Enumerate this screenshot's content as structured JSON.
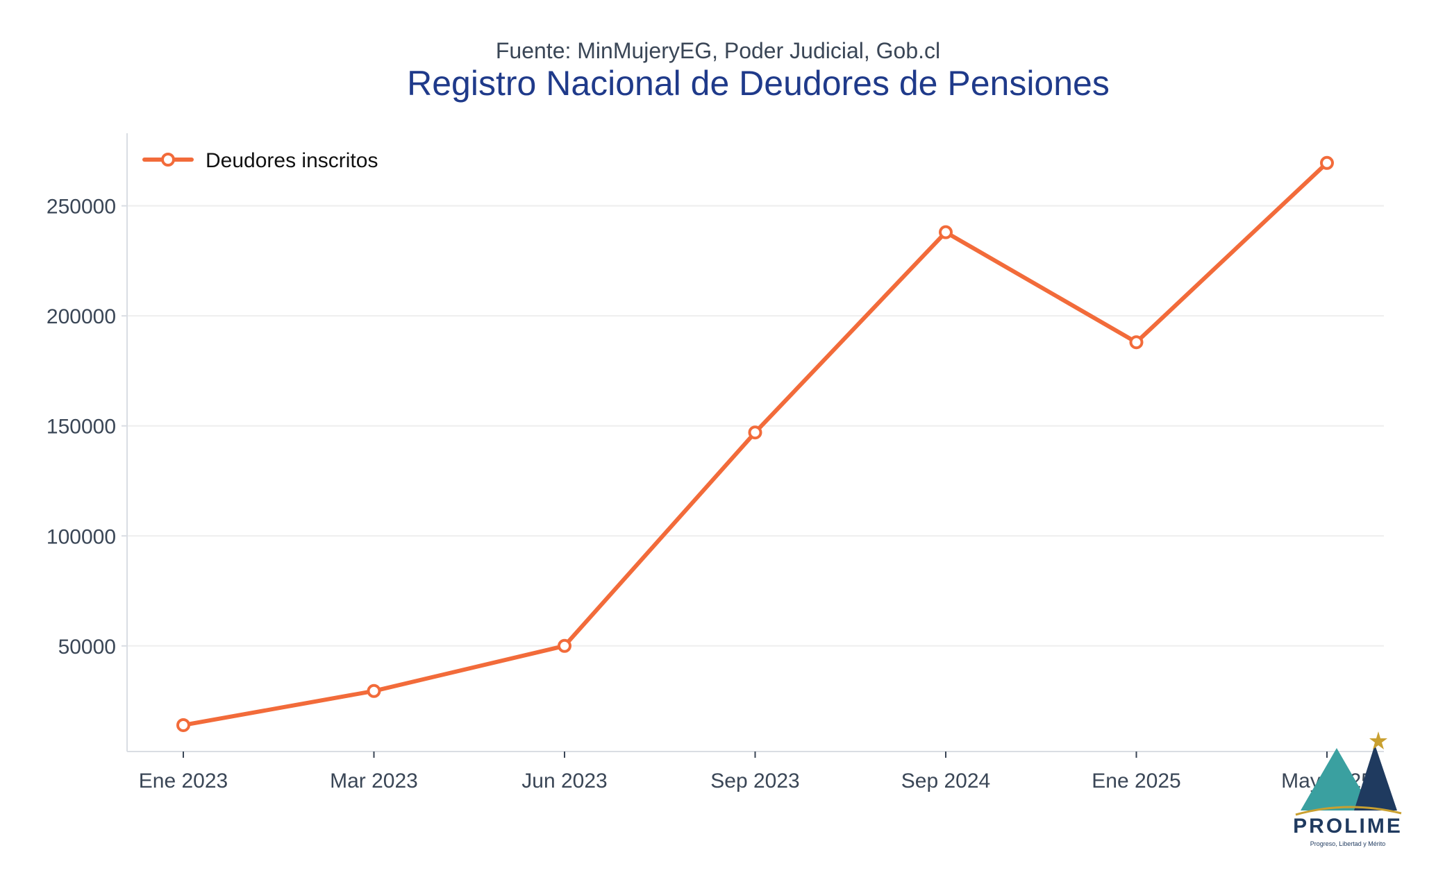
{
  "chart_data": {
    "type": "line",
    "subtitle": "Fuente: MinMujeryEG, Poder Judicial, Gob.cl",
    "title": "Registro Nacional de Deudores de Pensiones",
    "xlabel": "",
    "ylabel": "",
    "categories": [
      "Ene 2023",
      "Mar 2023",
      "Jun 2023",
      "Sep 2023",
      "Sep 2024",
      "Ene 2025",
      "May 2025"
    ],
    "series": [
      {
        "name": "Deudores inscritos",
        "values": [
          14000,
          29500,
          50000,
          147000,
          238000,
          188000,
          269500
        ]
      }
    ],
    "ylim": [
      2000,
      283000
    ],
    "yticks": [
      50000,
      100000,
      150000,
      200000,
      250000
    ],
    "grid": true,
    "legend_position": "top-left",
    "colors": {
      "line": "#f26b3a",
      "marker_fill": "#ffffff",
      "title": "#1f3a8a",
      "text": "#3a4656",
      "grid": "#eeeeee",
      "axis": "#d9dde3"
    }
  },
  "logo": {
    "name": "PROLIME",
    "tagline": "Progreso, Libertad y Mérito",
    "colors": {
      "teal": "#3aa0a0",
      "navy": "#1f3a5f",
      "gold": "#c9a030"
    }
  }
}
